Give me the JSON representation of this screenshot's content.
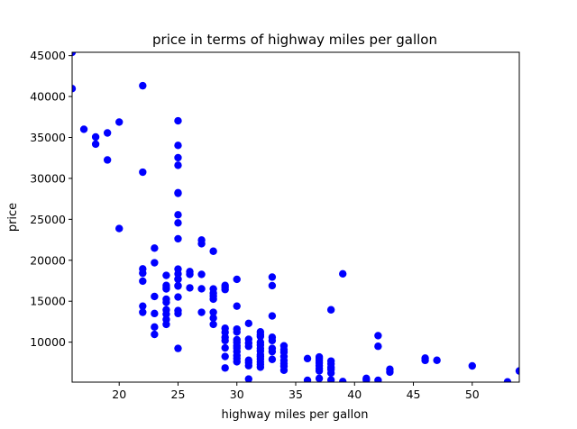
{
  "chart_data": {
    "type": "scatter",
    "title": "price in terms of highway miles per gallon",
    "xlabel": "highway miles per gallon",
    "ylabel": "price",
    "xlim": [
      16,
      54
    ],
    "ylim": [
      5118,
      45400
    ],
    "grid": false,
    "marker_color": "#0000ff",
    "x_ticks": [
      20,
      25,
      30,
      35,
      40,
      45,
      50
    ],
    "y_ticks": [
      10000,
      15000,
      20000,
      25000,
      30000,
      35000,
      40000,
      45000
    ],
    "x_tick_labels": [
      "20",
      "25",
      "30",
      "35",
      "40",
      "45",
      "50"
    ],
    "y_tick_labels": [
      "10000",
      "15000",
      "20000",
      "25000",
      "30000",
      "35000",
      "40000",
      "45000"
    ],
    "points": [
      [
        16,
        45400
      ],
      [
        16,
        40960
      ],
      [
        17,
        36000
      ],
      [
        18,
        35056
      ],
      [
        18,
        34184
      ],
      [
        19,
        35550
      ],
      [
        19,
        32250
      ],
      [
        20,
        36880
      ],
      [
        20,
        23875
      ],
      [
        22,
        41315
      ],
      [
        22,
        30760
      ],
      [
        22,
        18950
      ],
      [
        22,
        18420
      ],
      [
        22,
        17450
      ],
      [
        22,
        14399
      ],
      [
        22,
        13645
      ],
      [
        23,
        21485
      ],
      [
        23,
        19699
      ],
      [
        23,
        15580
      ],
      [
        23,
        13499
      ],
      [
        23,
        11850
      ],
      [
        23,
        10945
      ],
      [
        24,
        18150
      ],
      [
        24,
        16925
      ],
      [
        24,
        16500
      ],
      [
        24,
        16695
      ],
      [
        24,
        15250
      ],
      [
        24,
        14869
      ],
      [
        24,
        13950
      ],
      [
        24,
        13415
      ],
      [
        24,
        12764
      ],
      [
        24,
        12170
      ],
      [
        25,
        37028
      ],
      [
        25,
        34028
      ],
      [
        25,
        32528
      ],
      [
        25,
        31600
      ],
      [
        25,
        28248
      ],
      [
        25,
        28176
      ],
      [
        25,
        25552
      ],
      [
        25,
        24565
      ],
      [
        25,
        22625
      ],
      [
        25,
        18920
      ],
      [
        25,
        18344
      ],
      [
        25,
        17710
      ],
      [
        25,
        17669
      ],
      [
        25,
        16900
      ],
      [
        25,
        16845
      ],
      [
        25,
        15510
      ],
      [
        25,
        13860
      ],
      [
        25,
        13499
      ],
      [
        25,
        9233
      ],
      [
        26,
        18620
      ],
      [
        26,
        18280
      ],
      [
        26,
        16630
      ],
      [
        27,
        22470
      ],
      [
        27,
        22018
      ],
      [
        27,
        18280
      ],
      [
        27,
        16515
      ],
      [
        27,
        13645
      ],
      [
        28,
        21105
      ],
      [
        28,
        16500
      ],
      [
        28,
        15985
      ],
      [
        28,
        15645
      ],
      [
        28,
        15250
      ],
      [
        28,
        13645
      ],
      [
        28,
        12945
      ],
      [
        28,
        12170
      ],
      [
        29,
        16925
      ],
      [
        29,
        16695
      ],
      [
        29,
        16430
      ],
      [
        29,
        11694
      ],
      [
        29,
        11199
      ],
      [
        29,
        10595
      ],
      [
        29,
        10198
      ],
      [
        29,
        9295
      ],
      [
        29,
        8249
      ],
      [
        29,
        6849
      ],
      [
        30,
        17669
      ],
      [
        30,
        14399
      ],
      [
        30,
        11595
      ],
      [
        30,
        11248
      ],
      [
        30,
        10295
      ],
      [
        30,
        9960
      ],
      [
        30,
        9538
      ],
      [
        30,
        9279
      ],
      [
        30,
        8845
      ],
      [
        30,
        8358
      ],
      [
        30,
        8013
      ],
      [
        30,
        7603
      ],
      [
        31,
        12290
      ],
      [
        31,
        10345
      ],
      [
        31,
        9895
      ],
      [
        31,
        9495
      ],
      [
        31,
        7788
      ],
      [
        31,
        7499
      ],
      [
        31,
        7129
      ],
      [
        31,
        5499
      ],
      [
        32,
        11259
      ],
      [
        32,
        10898
      ],
      [
        32,
        10698
      ],
      [
        32,
        9988
      ],
      [
        32,
        9639
      ],
      [
        32,
        9258
      ],
      [
        32,
        8921
      ],
      [
        32,
        8495
      ],
      [
        32,
        8238
      ],
      [
        32,
        7957
      ],
      [
        32,
        7609
      ],
      [
        32,
        7295
      ],
      [
        32,
        6938
      ],
      [
        33,
        17950
      ],
      [
        33,
        16900
      ],
      [
        33,
        13200
      ],
      [
        33,
        10595
      ],
      [
        33,
        10198
      ],
      [
        33,
        9233
      ],
      [
        33,
        8845
      ],
      [
        33,
        7898
      ],
      [
        34,
        9549
      ],
      [
        34,
        9095
      ],
      [
        34,
        8778
      ],
      [
        34,
        8249
      ],
      [
        34,
        7775
      ],
      [
        34,
        7395
      ],
      [
        34,
        7053
      ],
      [
        34,
        6575
      ],
      [
        36,
        7995
      ],
      [
        36,
        5348
      ],
      [
        37,
        8195
      ],
      [
        37,
        7999
      ],
      [
        37,
        7738
      ],
      [
        37,
        7463
      ],
      [
        37,
        7126
      ],
      [
        37,
        6785
      ],
      [
        37,
        6488
      ],
      [
        37,
        5572
      ],
      [
        38,
        13950
      ],
      [
        38,
        7689
      ],
      [
        38,
        7349
      ],
      [
        38,
        6918
      ],
      [
        38,
        6669
      ],
      [
        38,
        6229
      ],
      [
        38,
        5389
      ],
      [
        39,
        18344
      ],
      [
        39,
        5195
      ],
      [
        41,
        5572
      ],
      [
        41,
        5389
      ],
      [
        42,
        10795
      ],
      [
        42,
        9495
      ],
      [
        42,
        5348
      ],
      [
        43,
        6692
      ],
      [
        43,
        6338
      ],
      [
        46,
        8058
      ],
      [
        46,
        7775
      ],
      [
        47,
        7788
      ],
      [
        50,
        7099
      ],
      [
        53,
        5151
      ],
      [
        54,
        6479
      ]
    ]
  }
}
